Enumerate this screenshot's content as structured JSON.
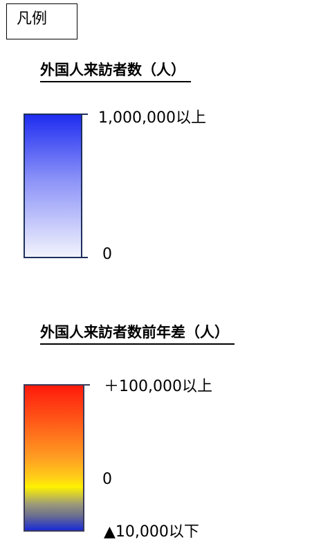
{
  "legend": {
    "title": "凡例"
  },
  "visitors": {
    "heading": "外国人来訪者数（人）",
    "max_label": "1,000,000以上",
    "min_label": "0",
    "color_top": "#1f2df0",
    "color_bottom": "#f2f3fc"
  },
  "diff": {
    "heading": "外国人来訪者数前年差（人）",
    "max_label": "＋100,000以上",
    "zero_label": "0",
    "min_label": "▲10,000以下",
    "color_top": "#ff1a0c",
    "color_middle": "#fff200",
    "color_bottom": "#1a2bd6"
  }
}
